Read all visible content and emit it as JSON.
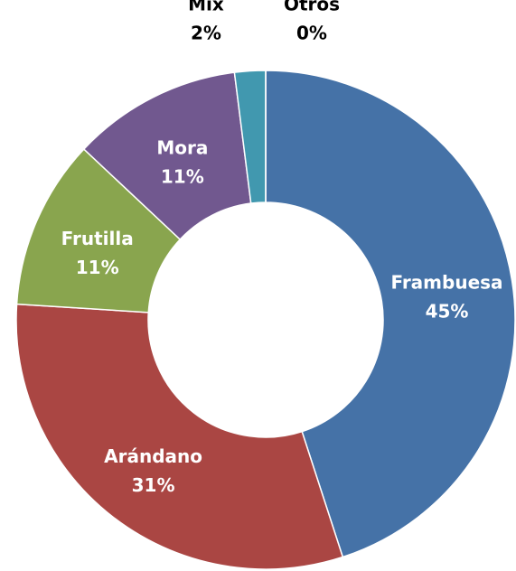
{
  "chart_data": {
    "type": "donut",
    "categories": [
      "Frambuesa",
      "Arándano",
      "Frutilla",
      "Mora",
      "Mix",
      "Otros"
    ],
    "values": [
      45,
      31,
      11,
      11,
      2,
      0
    ],
    "value_labels": [
      "45%",
      "31%",
      "11%",
      "11%",
      "2%",
      "0%"
    ],
    "colors": [
      "#4572a7",
      "#aa4643",
      "#89a54e",
      "#71588f",
      "#4198af",
      "#db843d"
    ]
  }
}
